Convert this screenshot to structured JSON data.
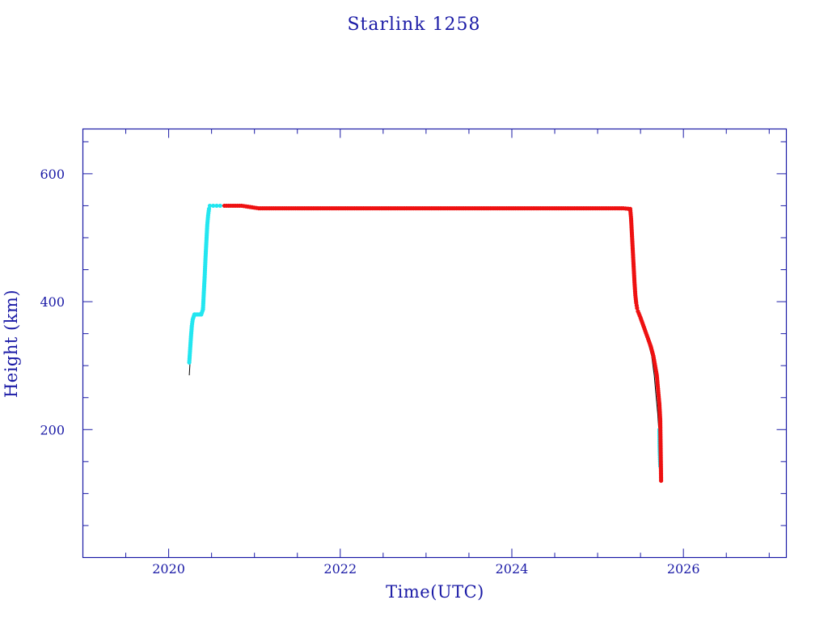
{
  "chart_data": {
    "type": "scatter",
    "title": "Starlink 1258",
    "xlabel": "Time(UTC)",
    "ylabel": "Height (km)",
    "xlim": [
      2019.0,
      2027.2
    ],
    "ylim": [
      0,
      670
    ],
    "x_ticks": [
      2020,
      2022,
      2024,
      2026
    ],
    "y_ticks": [
      200,
      400,
      600
    ],
    "grid": false,
    "colors": {
      "frame": "#1a1aa6",
      "text": "#1a1aa6",
      "path": "#000000",
      "cyan_points": "#22e6f0",
      "red_points": "#ee1111"
    },
    "path_line": {
      "x": [
        2020.24,
        2020.26,
        2020.28,
        2020.3,
        2020.32,
        2020.35,
        2020.38,
        2020.41,
        2020.43,
        2020.45,
        2020.47,
        2020.5,
        2020.6,
        2020.65,
        2020.9,
        2020.98,
        2021.1,
        2022.0,
        2023.0,
        2024.0,
        2025.0,
        2025.38,
        2025.4,
        2025.42,
        2025.44,
        2025.46,
        2025.48,
        2025.52,
        2025.58,
        2025.63,
        2025.66,
        2025.68,
        2025.7,
        2025.72,
        2025.74
      ],
      "y": [
        285,
        330,
        370,
        382,
        380,
        380,
        385,
        420,
        480,
        530,
        548,
        550,
        550,
        550,
        550,
        546,
        546,
        546,
        546,
        546,
        546,
        546,
        500,
        450,
        410,
        390,
        380,
        365,
        340,
        315,
        285,
        255,
        225,
        185,
        120
      ]
    },
    "series": [
      {
        "color": "cyan",
        "x": [
          2020.24,
          2020.25,
          2020.26,
          2020.27,
          2020.28,
          2020.3,
          2020.32,
          2020.34,
          2020.36,
          2020.38,
          2020.4,
          2020.41,
          2020.42,
          2020.43,
          2020.44,
          2020.45,
          2020.46,
          2020.47,
          2020.48,
          2020.52,
          2020.56,
          2020.6,
          2025.72,
          2025.722,
          2025.725,
          2025.728,
          2025.73
        ],
        "y": [
          305,
          325,
          345,
          362,
          372,
          380,
          380,
          380,
          380,
          380,
          388,
          415,
          440,
          470,
          495,
          520,
          535,
          545,
          550,
          550,
          550,
          550,
          200,
          175,
          160,
          150,
          143
        ]
      },
      {
        "color": "red",
        "x": [
          2020.65,
          2020.75,
          2020.85,
          2020.95,
          2021.05,
          2021.5,
          2022.0,
          2022.5,
          2023.0,
          2023.5,
          2024.0,
          2024.5,
          2025.0,
          2025.3,
          2025.38,
          2025.39,
          2025.4,
          2025.41,
          2025.42,
          2025.43,
          2025.44,
          2025.45,
          2025.46,
          2025.47,
          2025.5,
          2025.54,
          2025.58,
          2025.62,
          2025.65,
          2025.67,
          2025.69,
          2025.7,
          2025.71,
          2025.72,
          2025.73,
          2025.74
        ],
        "y": [
          550,
          550,
          550,
          548,
          546,
          546,
          546,
          546,
          546,
          546,
          546,
          546,
          546,
          546,
          545,
          530,
          505,
          480,
          455,
          430,
          410,
          398,
          390,
          385,
          375,
          360,
          345,
          330,
          315,
          300,
          285,
          270,
          255,
          240,
          215,
          120
        ]
      }
    ]
  }
}
